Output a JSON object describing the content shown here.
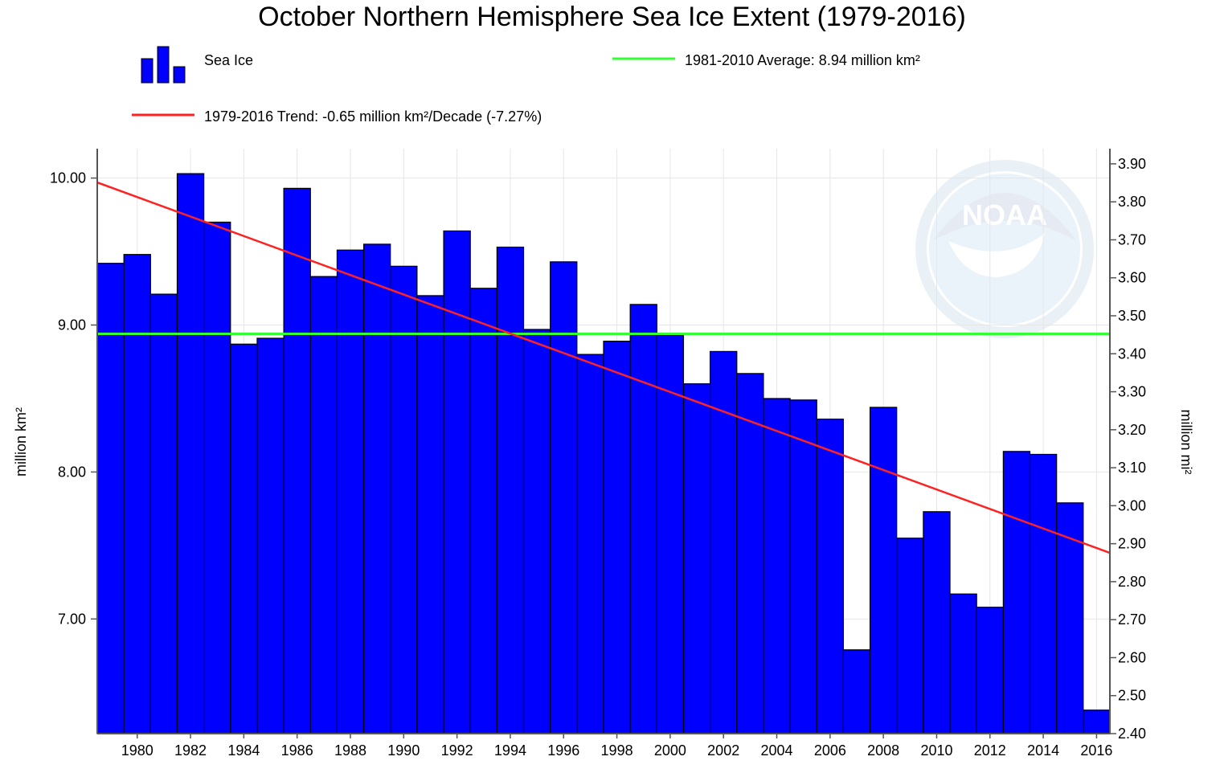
{
  "chart_data": {
    "type": "bar",
    "title": "October Northern Hemisphere Sea Ice Extent (1979-2016)",
    "xlabel": "",
    "ylabel": "million km²",
    "ylabel_right": "million mi²",
    "ylim": [
      6.22,
      10.2
    ],
    "ylim_right": [
      2.4,
      3.94
    ],
    "yticks": [
      "7.00",
      "8.00",
      "9.00",
      "10.00"
    ],
    "yticks_right": [
      "2.40",
      "2.50",
      "2.60",
      "2.70",
      "2.80",
      "2.90",
      "3.00",
      "3.10",
      "3.20",
      "3.30",
      "3.40",
      "3.50",
      "3.60",
      "3.70",
      "3.80",
      "3.90"
    ],
    "xticks": [
      "1980",
      "1982",
      "1984",
      "1986",
      "1988",
      "1990",
      "1992",
      "1994",
      "1996",
      "1998",
      "2000",
      "2002",
      "2004",
      "2006",
      "2008",
      "2010",
      "2012",
      "2014",
      "2016"
    ],
    "categories": [
      1979,
      1980,
      1981,
      1982,
      1983,
      1984,
      1985,
      1986,
      1987,
      1988,
      1989,
      1990,
      1991,
      1992,
      1993,
      1994,
      1995,
      1996,
      1997,
      1998,
      1999,
      2000,
      2001,
      2002,
      2003,
      2004,
      2005,
      2006,
      2007,
      2008,
      2009,
      2010,
      2011,
      2012,
      2013,
      2014,
      2015,
      2016
    ],
    "series": [
      {
        "name": "Sea Ice",
        "color": "#0000ff",
        "values": [
          9.42,
          9.48,
          9.21,
          10.03,
          9.7,
          8.87,
          8.91,
          9.93,
          9.33,
          9.51,
          9.55,
          9.4,
          9.2,
          9.64,
          9.25,
          9.53,
          8.97,
          9.43,
          8.8,
          8.89,
          9.14,
          8.93,
          8.6,
          8.82,
          8.67,
          8.5,
          8.49,
          8.36,
          6.79,
          8.44,
          7.55,
          7.73,
          7.17,
          7.08,
          8.14,
          8.12,
          7.79,
          6.38
        ]
      }
    ],
    "average": {
      "label": "1981-2010 Average: 8.94 million km²",
      "value": 8.94,
      "color": "#33ff33"
    },
    "trend": {
      "label": "1979-2016 Trend: -0.65 million km²/Decade (-7.27%)",
      "start": 9.97,
      "end": 7.45,
      "color": "#ff2222"
    },
    "legend_placement": "top",
    "grid": true,
    "watermark": "NOAA"
  }
}
